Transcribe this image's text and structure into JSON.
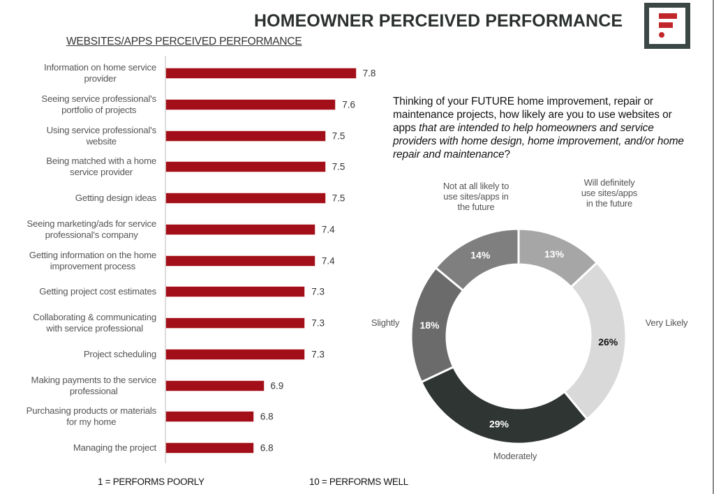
{
  "header": {
    "title": "HOMEOWNER PERCEIVED PERFORMANCE",
    "subtitle": "WEBSITES/APPS PERCEIVED PERFORMANCE",
    "logo": "brand-logo-icon"
  },
  "footer": {
    "scale_low": "1 = PERFORMS POORLY",
    "scale_high": "10 = PERFORMS WELL"
  },
  "question": {
    "part1": "Thinking of your FUTURE home improvement, repair or maintenance projects, how likely are you to use websites or apps ",
    "part2_italic": "that are intended to help homeowners and service providers with home design, home improvement, and/or home repair and maintenance",
    "part3": "?"
  },
  "colors": {
    "bar": "#a30f18",
    "logo_border": "#3a4744",
    "logo_accent": "#c0262a"
  },
  "chart_data": [
    {
      "type": "bar",
      "orientation": "horizontal",
      "title": "WEBSITES/APPS PERCEIVED PERFORMANCE",
      "xlabel": "",
      "scale_note": [
        "1 = PERFORMS POORLY",
        "10 = PERFORMS WELL"
      ],
      "xlim": [
        5.95,
        7.85
      ],
      "grid": false,
      "categories": [
        "Information on home service provider",
        "Seeing service professional's portfolio of projects",
        "Using service professional's website",
        "Being matched with a home service provider",
        "Getting design ideas",
        "Seeing marketing/ads for service professional's company",
        "Getting information on the home improvement process",
        "Getting project cost estimates",
        "Collaborating & communicating with service professional",
        "Project scheduling",
        "Making payments to the service professional",
        "Purchasing products or materials for my home",
        "Managing the project"
      ],
      "values": [
        7.8,
        7.6,
        7.5,
        7.5,
        7.5,
        7.4,
        7.4,
        7.3,
        7.3,
        7.3,
        6.9,
        6.8,
        6.8
      ],
      "value_labels": [
        "7.8",
        "7.6",
        "7.5",
        "7.5",
        "7.5",
        "7.4",
        "7.4",
        "7.3",
        "7.3",
        "7.3",
        "6.9",
        "6.8",
        "6.8"
      ]
    },
    {
      "type": "pie",
      "variant": "donut",
      "title": "Thinking of your FUTURE home improvement, repair or maintenance projects, how likely are you to use websites or apps that are intended to help homeowners and service providers with home design, home improvement, and/or home repair and maintenance?",
      "start": "top",
      "direction": "clockwise",
      "slices": [
        {
          "label": "Will definitely use sites/apps in the future",
          "value": 13,
          "value_label": "13%",
          "color": "#a6a6a6",
          "text_color": "#ffffff"
        },
        {
          "label": "Very Likely",
          "value": 26,
          "value_label": "26%",
          "color": "#d9d9d9",
          "text_color": "#111111"
        },
        {
          "label": "Moderately",
          "value": 29,
          "value_label": "29%",
          "color": "#2f3533",
          "text_color": "#ffffff"
        },
        {
          "label": "Slightly",
          "value": 18,
          "value_label": "18%",
          "color": "#6b6b6b",
          "text_color": "#ffffff"
        },
        {
          "label": "Not at all likely to use sites/apps in the future",
          "value": 14,
          "value_label": "14%",
          "color": "#7f7f7f",
          "text_color": "#ffffff"
        }
      ],
      "label_lines": {
        "Will definitely use sites/apps in the future": [
          "Will definitely",
          "use sites/apps",
          "in the future"
        ],
        "Very Likely": [
          "Very Likely"
        ],
        "Moderately": [
          "Moderately"
        ],
        "Slightly": [
          "Slightly"
        ],
        "Not at all likely to use sites/apps in the future": [
          "Not at all likely to",
          "use sites/apps in",
          "the future"
        ]
      }
    }
  ]
}
